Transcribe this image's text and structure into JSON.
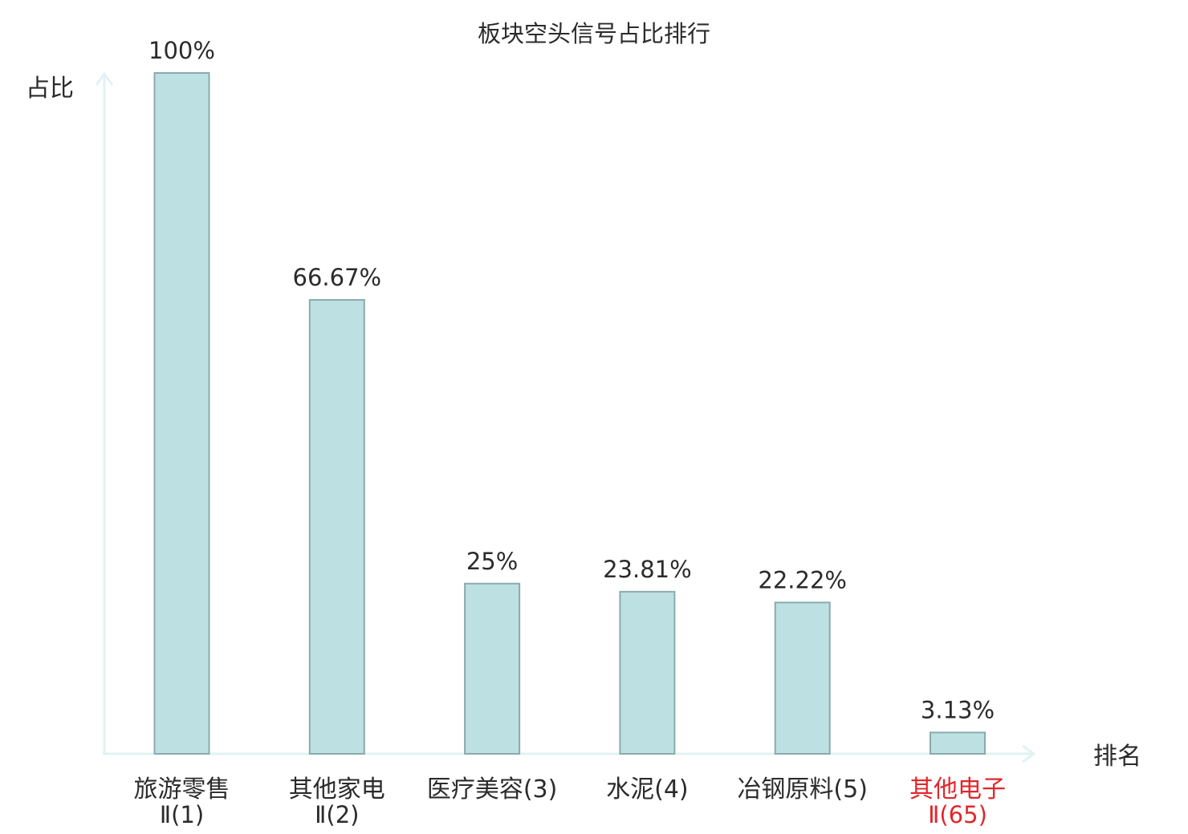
{
  "chart_data": {
    "type": "bar",
    "title": "板块空头信号占比排行",
    "ylabel": "占比",
    "xlabel": "排名",
    "ylim": [
      0,
      100
    ],
    "grid": false,
    "legend": "none",
    "categories": [
      {
        "name": "旅游零售",
        "rank": "Ⅱ(1)",
        "highlight": false
      },
      {
        "name": "其他家电",
        "rank": "Ⅱ(2)",
        "highlight": false
      },
      {
        "name": "医疗美容(3)",
        "rank": "",
        "highlight": false
      },
      {
        "name": "水泥(4)",
        "rank": "",
        "highlight": false
      },
      {
        "name": "冶钢原料(5)",
        "rank": "",
        "highlight": false
      },
      {
        "name": "其他电子",
        "rank": "Ⅱ(65)",
        "highlight": true
      }
    ],
    "values": [
      100,
      66.67,
      25,
      23.81,
      22.22,
      3.13
    ],
    "value_labels": [
      "100%",
      "66.67%",
      "25%",
      "23.81%",
      "22.22%",
      "3.13%"
    ],
    "colors": {
      "bar_fill": "#bde0e3",
      "bar_stroke": "#8aabad",
      "axis": "#e0f3f2",
      "text": "#2b2b2b",
      "highlight": "#e3262b"
    }
  }
}
